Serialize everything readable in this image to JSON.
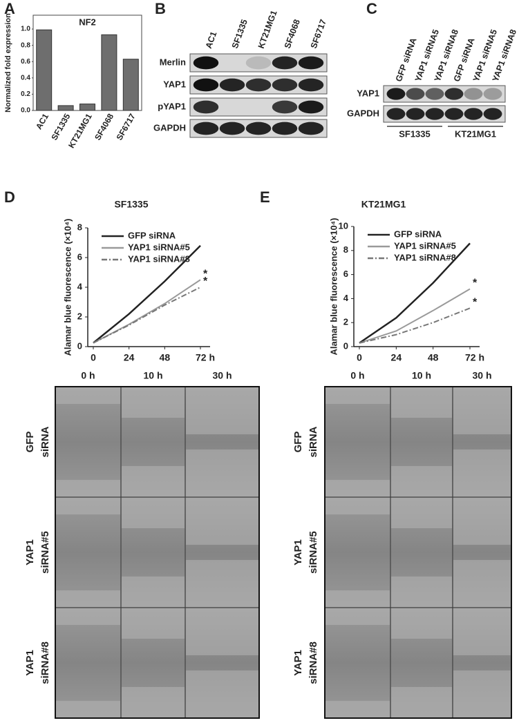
{
  "chart_data": [
    {
      "type": "bar",
      "title": "NF2",
      "ylabel": "Normalized fold expression",
      "categories": [
        "AC1",
        "SF1335",
        "KT21MG1",
        "SF4068",
        "SF6717"
      ],
      "values": [
        0.99,
        0.06,
        0.08,
        0.93,
        0.63
      ],
      "color": "#6e6e6e",
      "ylim": [
        0,
        1.17
      ],
      "yticks": [
        {
          "value": 0,
          "label": "0.0"
        },
        0.2,
        0.4,
        0.6,
        0.8,
        {
          "value": 1,
          "label": "1.0"
        }
      ]
    },
    {
      "type": "line",
      "title": "SF1335",
      "ylabel": "Alamar blue fluorescence (×10⁴)",
      "x": [
        0,
        24,
        48,
        72
      ],
      "xlim": [
        0,
        72
      ],
      "xticks": [
        0,
        24,
        48,
        {
          "value": 72,
          "label": "72 h"
        }
      ],
      "ylim": [
        0,
        8
      ],
      "yticks": [
        0,
        2,
        4,
        6,
        8
      ],
      "series": [
        {
          "name": "GFP siRNA",
          "color": "#222222",
          "linestyle": "solid",
          "values": [
            0.25,
            2.2,
            4.4,
            6.8
          ]
        },
        {
          "name": "YAP1 siRNA#5",
          "color": "#9a9a9a",
          "linestyle": "solid",
          "values": [
            0.25,
            1.5,
            2.9,
            4.5
          ]
        },
        {
          "name": "YAP1 siRNA#8",
          "color": "#777777",
          "linestyle": "dashdot",
          "values": [
            0.25,
            1.45,
            2.8,
            4.0
          ]
        }
      ],
      "annotations": [
        "*",
        "*"
      ]
    },
    {
      "type": "line",
      "title": "KT21MG1",
      "ylabel": "Alamar blue fluorescence (×10⁴)",
      "x": [
        0,
        24,
        48,
        72
      ],
      "xlim": [
        0,
        72
      ],
      "xticks": [
        0,
        24,
        48,
        {
          "value": 72,
          "label": "72 h"
        }
      ],
      "ylim": [
        0,
        10
      ],
      "yticks": [
        0,
        2,
        4,
        6,
        8,
        10
      ],
      "series": [
        {
          "name": "GFP siRNA",
          "color": "#222222",
          "linestyle": "solid",
          "values": [
            0.3,
            2.4,
            5.3,
            8.6
          ]
        },
        {
          "name": "YAP1 siRNA#5",
          "color": "#9a9a9a",
          "linestyle": "solid",
          "values": [
            0.3,
            1.3,
            3.0,
            4.8
          ]
        },
        {
          "name": "YAP1 siRNA#8",
          "color": "#777777",
          "linestyle": "dashdot",
          "values": [
            0.3,
            1.0,
            2.0,
            3.2
          ]
        }
      ],
      "annotations": [
        "*",
        "*"
      ]
    }
  ],
  "panels": [
    "A",
    "B",
    "C",
    "D",
    "E"
  ],
  "blot_b": {
    "lanes": [
      "AC1",
      "SF1335",
      "KT21MG1",
      "SF4068",
      "SF6717"
    ],
    "rows": [
      "Merlin",
      "YAP1",
      "pYAP1",
      "GAPDH"
    ]
  },
  "blot_c": {
    "lanes": [
      "GFP siRNA",
      "YAP1 siRNA5",
      "YAP1 siRNA8",
      "GFP siRNA",
      "YAP1 siRNA5",
      "YAP1 siRNA8"
    ],
    "rows": [
      "YAP1",
      "GAPDH"
    ],
    "groups": [
      "SF1335",
      "KT21MG1"
    ]
  },
  "migration": {
    "times": [
      "0 h",
      "10 h",
      "30 h"
    ],
    "rows": [
      [
        "GFP",
        "siRNA"
      ],
      [
        "YAP1",
        "siRNA#5"
      ],
      [
        "YAP1",
        "siRNA#8"
      ]
    ]
  }
}
